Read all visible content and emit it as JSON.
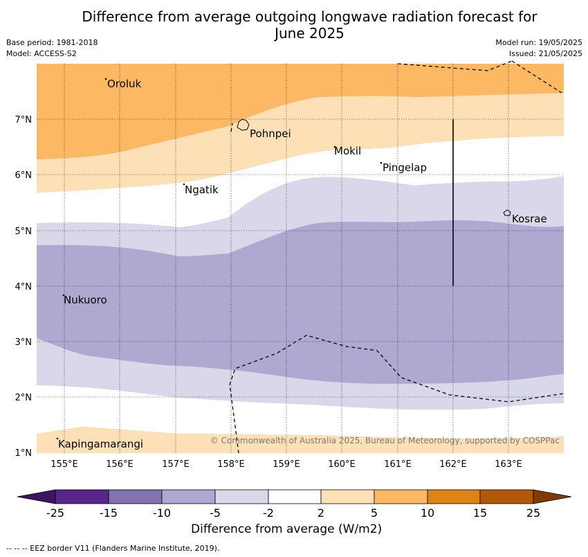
{
  "title": "Difference from average outgoing longwave radiation forecast for June 2025",
  "title_lines": [
    "Difference from average outgoing longwave radiation forecast for",
    "June 2025"
  ],
  "base_period": "Base period: 1981-2018",
  "model": "Model: ACCESS-S2",
  "model_run": "Model run: 19/05/2025",
  "issued": "Issued: 21/05/2025",
  "copyright": "© Commonwealth of Australia 2025, Bureau of Meteorology, supported by COSPPac",
  "footnote": "--  --  -- EEZ border V11 (Flanders Marine Institute, 2019).",
  "colorbar": {
    "title": "Difference from average (W/m2)",
    "tick_labels": [
      "-25",
      "-15",
      "-10",
      "-5",
      "-2",
      "2",
      "5",
      "10",
      "15",
      "25"
    ],
    "colors": [
      "#3d1362",
      "#58258a",
      "#8272ad",
      "#b0a8d0",
      "#d8d8ea",
      "#ffffff",
      "#fde0b6",
      "#fdb863",
      "#e08214",
      "#b35806",
      "#7f3b08"
    ]
  },
  "map": {
    "lon_range": [
      154.5,
      164
    ],
    "lat_range": [
      1,
      8
    ],
    "lon_ticks": [
      "155°E",
      "156°E",
      "157°E",
      "158°E",
      "159°E",
      "160°E",
      "161°E",
      "162°E",
      "163°E"
    ],
    "lat_ticks": [
      "1°N",
      "2°N",
      "3°N",
      "4°N",
      "5°N",
      "6°N",
      "7°N"
    ],
    "places": [
      {
        "name": "Oroluk",
        "lon": 155.75,
        "lat": 7.6
      },
      {
        "name": "Pohnpei",
        "lon": 158.2,
        "lat": 6.85
      },
      {
        "name": "Mokil",
        "lon": 159.78,
        "lat": 6.68
      },
      {
        "name": "Pingelap",
        "lon": 160.7,
        "lat": 6.2
      },
      {
        "name": "Ngatik",
        "lon": 157.15,
        "lat": 5.8
      },
      {
        "name": "Kosrae",
        "lon": 162.98,
        "lat": 5.32
      },
      {
        "name": "Nukuoro",
        "lon": 154.97,
        "lat": 3.85
      },
      {
        "name": "Kapingamarangi",
        "lon": 154.86,
        "lat": 1.08
      }
    ]
  }
}
